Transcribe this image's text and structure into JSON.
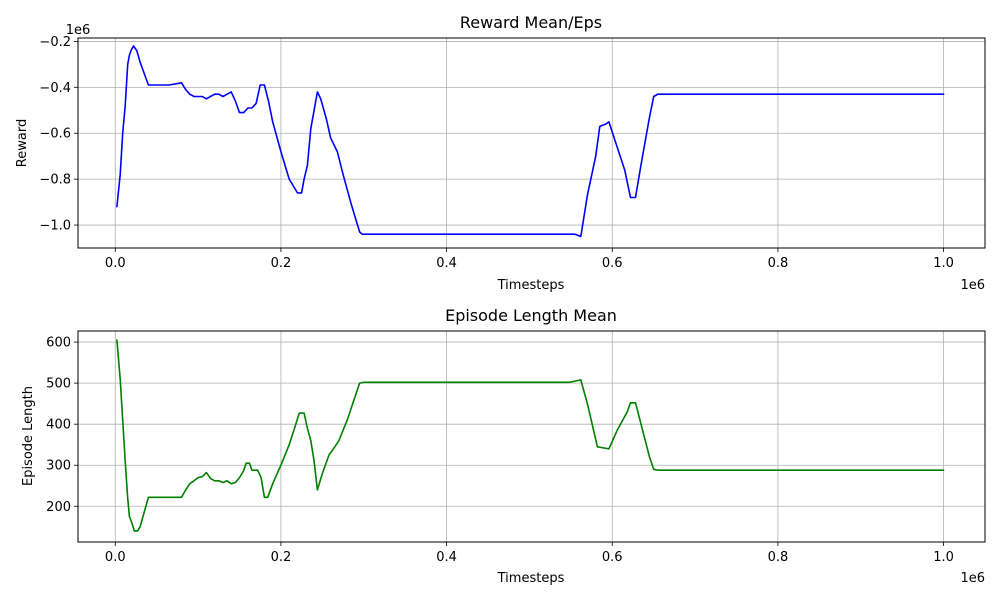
{
  "chart_data": [
    {
      "type": "line",
      "title": "Reward Mean/Eps",
      "xlabel": "Timesteps",
      "ylabel": "Reward",
      "x_offset_label": "1e6",
      "y_offset_label": "1e6",
      "xlim": [
        -0.045,
        1.05
      ],
      "ylim": [
        -1.1,
        -0.185
      ],
      "xticks": [
        0.0,
        0.2,
        0.4,
        0.6,
        0.8,
        1.0
      ],
      "xtick_labels": [
        "0.0",
        "0.2",
        "0.4",
        "0.6",
        "0.8",
        "1.0"
      ],
      "yticks": [
        -1.0,
        -0.8,
        -0.6,
        -0.4,
        -0.2
      ],
      "ytick_labels": [
        "−1.0",
        "−0.8",
        "−0.6",
        "−0.4",
        "−0.2"
      ],
      "grid": true,
      "series": [
        {
          "color": "#0000ff",
          "x": [
            0.002,
            0.006,
            0.009,
            0.012,
            0.015,
            0.017,
            0.019,
            0.022,
            0.026,
            0.03,
            0.04,
            0.055,
            0.065,
            0.08,
            0.085,
            0.09,
            0.095,
            0.1,
            0.105,
            0.11,
            0.115,
            0.12,
            0.125,
            0.13,
            0.135,
            0.14,
            0.145,
            0.15,
            0.155,
            0.16,
            0.165,
            0.17,
            0.175,
            0.18,
            0.185,
            0.19,
            0.2,
            0.21,
            0.22,
            0.225,
            0.228,
            0.232,
            0.236,
            0.24,
            0.244,
            0.248,
            0.255,
            0.26,
            0.268,
            0.275,
            0.285,
            0.295,
            0.298,
            0.3,
            0.4,
            0.5,
            0.548,
            0.555,
            0.562,
            0.57,
            0.58,
            0.585,
            0.592,
            0.596,
            0.605,
            0.615,
            0.622,
            0.628,
            0.635,
            0.645,
            0.65,
            0.655,
            0.7,
            0.8,
            0.9,
            1.0
          ],
          "y": [
            -0.92,
            -0.78,
            -0.6,
            -0.48,
            -0.3,
            -0.26,
            -0.24,
            -0.22,
            -0.24,
            -0.29,
            -0.39,
            -0.39,
            -0.39,
            -0.38,
            -0.41,
            -0.43,
            -0.44,
            -0.44,
            -0.44,
            -0.45,
            -0.44,
            -0.43,
            -0.43,
            -0.44,
            -0.43,
            -0.42,
            -0.46,
            -0.51,
            -0.51,
            -0.49,
            -0.49,
            -0.47,
            -0.39,
            -0.39,
            -0.46,
            -0.55,
            -0.68,
            -0.8,
            -0.86,
            -0.86,
            -0.8,
            -0.74,
            -0.58,
            -0.5,
            -0.42,
            -0.45,
            -0.54,
            -0.62,
            -0.68,
            -0.78,
            -0.91,
            -1.03,
            -1.04,
            -1.04,
            -1.04,
            -1.04,
            -1.04,
            -1.04,
            -1.05,
            -0.87,
            -0.7,
            -0.57,
            -0.56,
            -0.55,
            -0.65,
            -0.76,
            -0.88,
            -0.88,
            -0.73,
            -0.53,
            -0.44,
            -0.43,
            -0.43,
            -0.43,
            -0.43,
            -0.43
          ]
        }
      ]
    },
    {
      "type": "line",
      "title": "Episode Length Mean",
      "xlabel": "Timesteps",
      "ylabel": "Episode Length",
      "x_offset_label": "1e6",
      "xlim": [
        -0.045,
        1.05
      ],
      "ylim": [
        113,
        627
      ],
      "xticks": [
        0.0,
        0.2,
        0.4,
        0.6,
        0.8,
        1.0
      ],
      "xtick_labels": [
        "0.0",
        "0.2",
        "0.4",
        "0.6",
        "0.8",
        "1.0"
      ],
      "yticks": [
        200,
        300,
        400,
        500,
        600
      ],
      "ytick_labels": [
        "200",
        "300",
        "400",
        "500",
        "600"
      ],
      "grid": true,
      "series": [
        {
          "color": "#008000",
          "x": [
            0.002,
            0.006,
            0.009,
            0.012,
            0.015,
            0.017,
            0.02,
            0.023,
            0.027,
            0.03,
            0.04,
            0.055,
            0.065,
            0.08,
            0.085,
            0.09,
            0.095,
            0.1,
            0.105,
            0.11,
            0.115,
            0.12,
            0.125,
            0.13,
            0.135,
            0.14,
            0.145,
            0.15,
            0.155,
            0.158,
            0.162,
            0.165,
            0.172,
            0.176,
            0.18,
            0.184,
            0.19,
            0.2,
            0.21,
            0.218,
            0.222,
            0.228,
            0.232,
            0.236,
            0.24,
            0.244,
            0.25,
            0.258,
            0.265,
            0.27,
            0.28,
            0.295,
            0.3,
            0.4,
            0.5,
            0.548,
            0.555,
            0.562,
            0.57,
            0.582,
            0.59,
            0.596,
            0.606,
            0.618,
            0.622,
            0.628,
            0.636,
            0.645,
            0.65,
            0.655,
            0.7,
            0.8,
            0.9,
            1.0
          ],
          "y": [
            605,
            510,
            410,
            310,
            220,
            175,
            160,
            140,
            140,
            150,
            222,
            222,
            222,
            222,
            240,
            255,
            262,
            270,
            272,
            282,
            268,
            262,
            262,
            258,
            262,
            255,
            258,
            270,
            287,
            305,
            305,
            288,
            288,
            270,
            222,
            222,
            255,
            300,
            350,
            400,
            427,
            427,
            390,
            360,
            310,
            240,
            280,
            325,
            345,
            360,
            410,
            500,
            502,
            502,
            502,
            502,
            505,
            508,
            450,
            345,
            342,
            340,
            385,
            430,
            452,
            452,
            390,
            320,
            290,
            288,
            288,
            288,
            288,
            288
          ]
        }
      ]
    }
  ]
}
